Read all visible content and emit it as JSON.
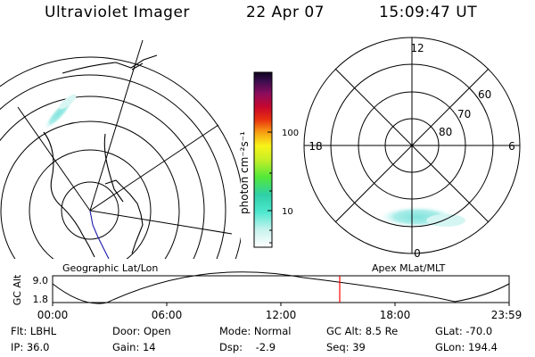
{
  "header": {
    "instrument": "Ultraviolet Imager",
    "date": "22 Apr 07",
    "time": "15:09:47 UT"
  },
  "geo_panel": {
    "label": "Geographic Lat/Lon"
  },
  "mag_panel": {
    "label": "Apex  MLat/MLT",
    "mlt_labels": {
      "top": "12",
      "left": "18",
      "right": "6",
      "bottom": "0"
    },
    "lat_labels": [
      "60",
      "70",
      "80"
    ]
  },
  "colorbar": {
    "unit_label": "photon cm⁻²s⁻¹",
    "ticks": [
      "100",
      "10"
    ]
  },
  "orbit_plot": {
    "ylabel": "GC Alt",
    "ytick_top": "9.0",
    "ytick_bottom": "1.8",
    "xticks": [
      "00:00",
      "06:00",
      "12:00",
      "18:00",
      "23:59"
    ],
    "current_time_line_color": "#ff0000"
  },
  "status": {
    "filter": "Flt: LBHL",
    "ip": "IP: 36.0",
    "door": "Door: Open",
    "gain": "Gain: 14",
    "mode": "Mode: Normal",
    "dsp": "Dsp:    -2.9",
    "gc_alt": "GC Alt: 8.5 Re",
    "seq": "Seq: 39",
    "glat": "GLat: -70.0",
    "glon": "GLon: 194.4"
  }
}
